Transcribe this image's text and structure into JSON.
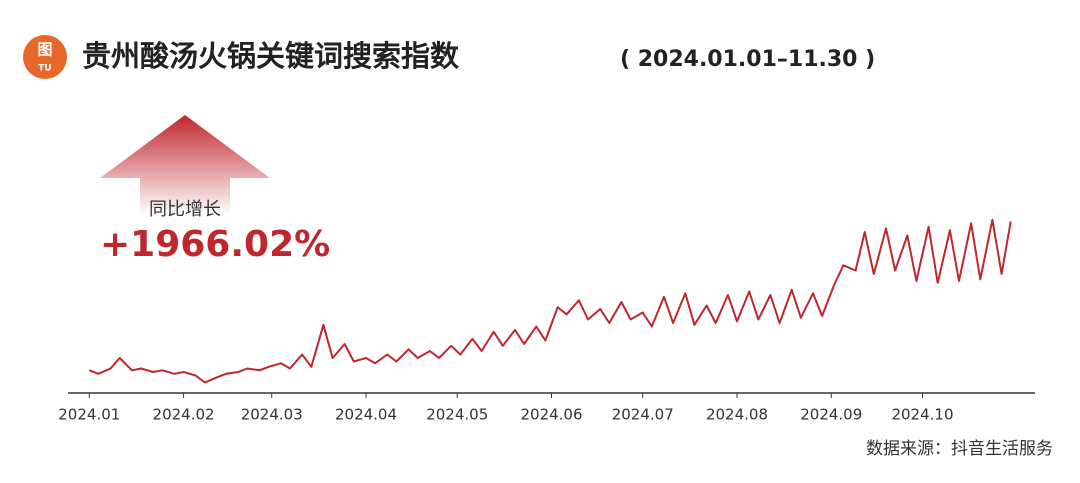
{
  "chart_data": {
    "type": "line",
    "icon_text": [
      "图",
      "TU"
    ],
    "title": "贵州酸汤火锅关键词搜索指数",
    "subtitle": "( 2024.01.01–11.30 )",
    "annotation_label": "同比增长",
    "annotation_value": "+1966.02%",
    "source": "数据来源：抖音生活服务",
    "xlim": [
      -7,
      311
    ],
    "ylim": [
      0,
      100
    ],
    "xticks": [
      {
        "value": 0,
        "label": "2024.01"
      },
      {
        "value": 31,
        "label": "2024.02"
      },
      {
        "value": 60,
        "label": "2024.03"
      },
      {
        "value": 91,
        "label": "2024.04"
      },
      {
        "value": 121,
        "label": "2024.05"
      },
      {
        "value": 152,
        "label": "2024.06"
      },
      {
        "value": 182,
        "label": "2024.07"
      },
      {
        "value": 213,
        "label": "2024.08"
      },
      {
        "value": 244,
        "label": "2024.09"
      },
      {
        "value": 274,
        "label": "2024.10"
      }
    ],
    "x": [
      0,
      3,
      7,
      10,
      14,
      17,
      21,
      24,
      28,
      31,
      35,
      38,
      42,
      45,
      49,
      52,
      56,
      59,
      63,
      66,
      70,
      73,
      77,
      80,
      84,
      87,
      91,
      94,
      98,
      101,
      105,
      108,
      112,
      115,
      119,
      122,
      126,
      129,
      133,
      136,
      140,
      143,
      147,
      150,
      154,
      157,
      161,
      164,
      168,
      171,
      175,
      178,
      182,
      185,
      189,
      192,
      196,
      199,
      203,
      206,
      210,
      213,
      217,
      220,
      224,
      227,
      231,
      234,
      238,
      241,
      245,
      248,
      252,
      255,
      258,
      262,
      265,
      269,
      272,
      276,
      279,
      283,
      286,
      290,
      293,
      297,
      300,
      303
    ],
    "series": [
      {
        "color": "#c0272d",
        "values": [
          13,
          11,
          14,
          20,
          13,
          14,
          12,
          13,
          11,
          12,
          10,
          6,
          9,
          11,
          12,
          14,
          13,
          15,
          17,
          14,
          22,
          15,
          39,
          20,
          28,
          18,
          20,
          17,
          22,
          18,
          25,
          20,
          24,
          20,
          27,
          22,
          31,
          24,
          35,
          27,
          36,
          28,
          38,
          30,
          49,
          45,
          53,
          42,
          48,
          40,
          52,
          42,
          46,
          38,
          55,
          40,
          57,
          39,
          50,
          40,
          56,
          41,
          58,
          42,
          56,
          40,
          59,
          43,
          57,
          44,
          62,
          73,
          70,
          92,
          68,
          94,
          70,
          90,
          64,
          95,
          63,
          93,
          64,
          97,
          65,
          99,
          68,
          98
        ]
      }
    ]
  }
}
